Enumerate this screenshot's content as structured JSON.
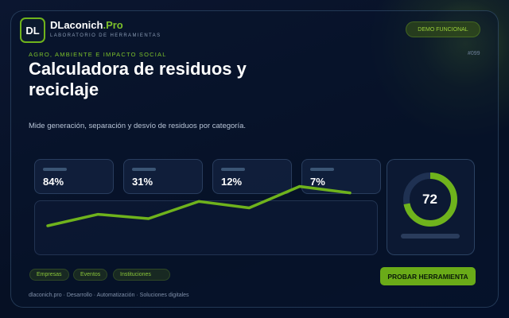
{
  "brand": {
    "logo_text": "DL",
    "name_main": "DLaconich",
    "name_accent": ".Pro",
    "subtitle": "LABORATORIO DE HERRAMIENTAS"
  },
  "header": {
    "demo_label": "DEMO FUNCIONAL"
  },
  "hero": {
    "eyebrow": "AGRO, AMBIENTE E IMPACTO SOCIAL",
    "code": "#099",
    "title": "Calculadora de residuos y reciclaje",
    "description": "Mide generación, separación y desvío de residuos por categoría."
  },
  "stats": [
    {
      "value": "84%"
    },
    {
      "value": "31%"
    },
    {
      "value": "12%"
    },
    {
      "value": "7%"
    }
  ],
  "chart_data": {
    "type": "line",
    "values": [
      0.2,
      0.52,
      0.4,
      0.88,
      0.7,
      1.3,
      1.12
    ]
  },
  "gauge": {
    "value": "72",
    "fraction": 0.72
  },
  "tags": [
    "Empresas",
    "Eventos",
    "Instituciones"
  ],
  "cta_label": "PROBAR HERRAMIENTA",
  "footer": "dlaconich.pro · Desarrollo · Automatización · Soluciones digitales",
  "colors": {
    "accent": "#6fb31c",
    "background": "#07122a",
    "track": "#1f3152"
  }
}
